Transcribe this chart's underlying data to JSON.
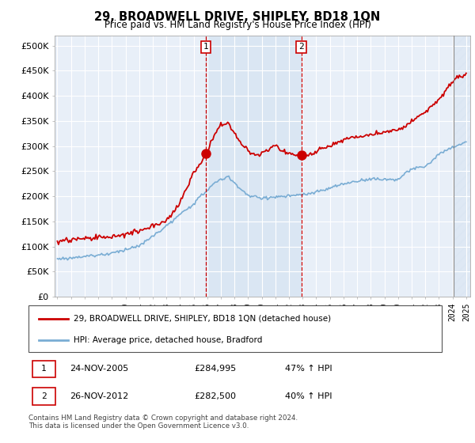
{
  "title": "29, BROADWELL DRIVE, SHIPLEY, BD18 1QN",
  "subtitle": "Price paid vs. HM Land Registry's House Price Index (HPI)",
  "yticks": [
    0,
    50000,
    100000,
    150000,
    200000,
    250000,
    300000,
    350000,
    400000,
    450000,
    500000
  ],
  "ytick_labels": [
    "£0",
    "£50K",
    "£100K",
    "£150K",
    "£200K",
    "£250K",
    "£300K",
    "£350K",
    "£400K",
    "£450K",
    "£500K"
  ],
  "ylim": [
    0,
    520000
  ],
  "xlim_start": 1994.8,
  "xlim_end": 2025.3,
  "plot_bg_color": "#e8eff8",
  "fig_bg_color": "#ffffff",
  "grid_color": "#ffffff",
  "red_line_color": "#cc0000",
  "blue_line_color": "#7aadd4",
  "sale1_x": 2005.9,
  "sale1_y": 284995,
  "sale2_x": 2012.9,
  "sale2_y": 282500,
  "legend_label_red": "29, BROADWELL DRIVE, SHIPLEY, BD18 1QN (detached house)",
  "legend_label_blue": "HPI: Average price, detached house, Bradford",
  "table_row1": [
    "1",
    "24-NOV-2005",
    "£284,995",
    "47% ↑ HPI"
  ],
  "table_row2": [
    "2",
    "26-NOV-2012",
    "£282,500",
    "40% ↑ HPI"
  ],
  "footer": "Contains HM Land Registry data © Crown copyright and database right 2024.\nThis data is licensed under the Open Government Licence v3.0.",
  "shade_color": "#dae6f3",
  "hatch_end": 2024.1,
  "hatch_end2": 2025.3,
  "vline_end": 2024.1
}
